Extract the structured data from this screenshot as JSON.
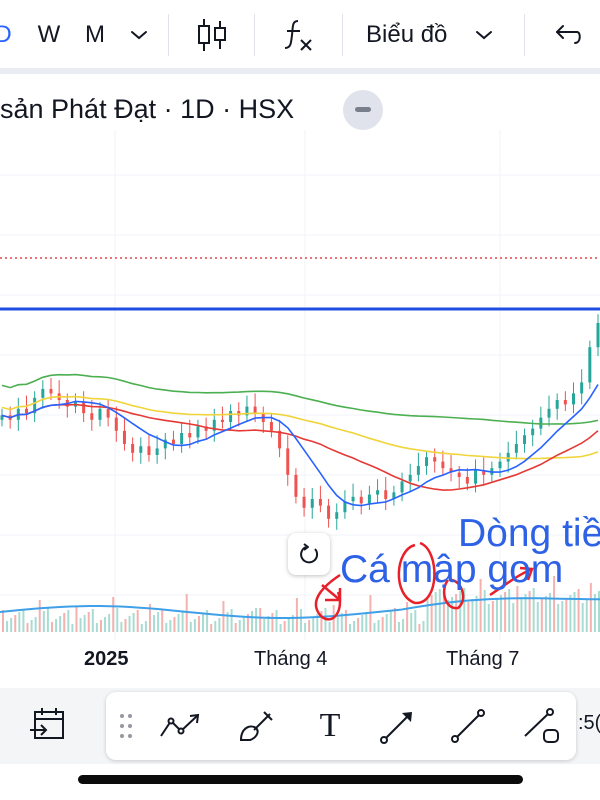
{
  "toolbar": {
    "intervals": [
      "D",
      "W",
      "M"
    ],
    "interval_active": "D",
    "interval_dropdown_icon": "chevron-down-icon",
    "chart_type_icon": "candlestick-icon",
    "indicators_icon": "function-fx-icon",
    "chart_menu_label": "Biểu đồ",
    "undo_icon": "undo-icon"
  },
  "legend": {
    "title": "sản Phát Đạt · 1D · HSX"
  },
  "chart_area": {
    "x_axis_labels": [
      "2025",
      "Tháng 4",
      "Tháng 7"
    ],
    "annotations": {
      "text1": "Dòng tiề",
      "text2": "Cá mập gom"
    },
    "colors": {
      "up": "#26a69a",
      "down": "#ef5350",
      "ma_blue": "#2962ff",
      "ma_red": "#e53935",
      "ma_yellow": "#f0d43a",
      "ma_green": "#4caf50",
      "resistance": "#1e4fe0",
      "volume_ma": "#3fa0e8"
    }
  },
  "bottom_toolbar": {
    "tools": [
      "trend-angle-icon",
      "brush-icon",
      "text-icon",
      "arrow-icon",
      "trend-line-icon",
      "ray-icon"
    ],
    "text_tool_glyph": "T",
    "time_fragment": ":5("
  },
  "chart_data": {
    "type": "candlestick",
    "x_labels": [
      "2025",
      "Tháng 4",
      "Tháng 7"
    ],
    "close": [
      18.3,
      18.1,
      18.6,
      18.4,
      19.1,
      19.5,
      19.3,
      19.0,
      18.7,
      18.9,
      18.4,
      18.1,
      18.6,
      18.2,
      17.6,
      17.0,
      16.6,
      16.9,
      16.5,
      16.8,
      17.2,
      17.0,
      17.5,
      17.3,
      17.8,
      17.6,
      18.1,
      18.0,
      18.5,
      18.3,
      18.7,
      18.4,
      18.0,
      17.6,
      16.8,
      15.6,
      14.6,
      14.1,
      14.5,
      14.2,
      13.6,
      13.9,
      14.4,
      14.6,
      14.3,
      14.7,
      14.9,
      14.5,
      14.8,
      15.3,
      15.6,
      16.0,
      16.4,
      16.2,
      15.9,
      15.7,
      15.5,
      15.2,
      15.8,
      15.6,
      15.9,
      16.2,
      16.6,
      17.0,
      17.4,
      17.7,
      18.2,
      18.6,
      19.0,
      18.8,
      19.3,
      19.8,
      21.4,
      22.5
    ],
    "volume_note": "volume bars shown at bottom"
  }
}
